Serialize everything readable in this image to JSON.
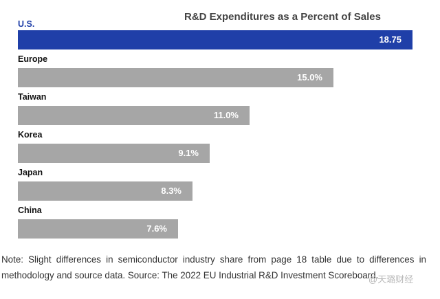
{
  "chart_data": {
    "type": "bar",
    "orientation": "horizontal",
    "title": "R&D Expenditures as a Percent of Sales",
    "categories": [
      "U.S.",
      "Europe",
      "Taiwan",
      "Korea",
      "Japan",
      "China"
    ],
    "values": [
      18.75,
      15.0,
      11.0,
      9.1,
      8.3,
      7.6
    ],
    "value_labels": [
      "18.75",
      "15.0%",
      "11.0%",
      "9.1%",
      "8.3%",
      "7.6%"
    ],
    "bar_colors": [
      "#1f3fa8",
      "#a6a6a6",
      "#a6a6a6",
      "#a6a6a6",
      "#a6a6a6",
      "#a6a6a6"
    ],
    "highlight_label_color": "#1f3fa8",
    "xlim": [
      0,
      18.75
    ],
    "grid": false,
    "legend": "none"
  },
  "note": "Note: Slight differences in semiconductor industry share from page 18 table due to differences in methodology and source data. Source: The 2022 EU Industrial R&D Investment Scoreboard.",
  "watermark": "@天璐财经"
}
